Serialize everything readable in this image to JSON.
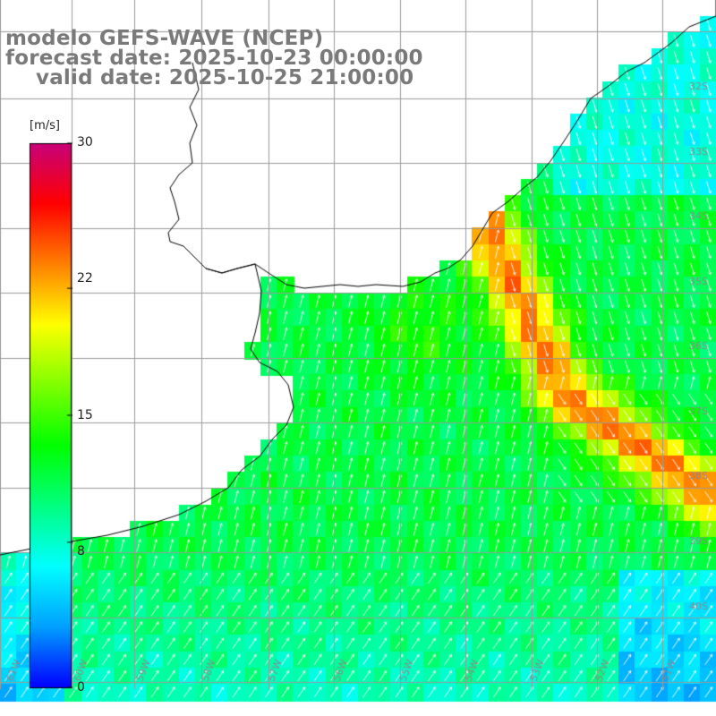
{
  "title": {
    "line1": "modelo GEFS-WAVE (NCEP)",
    "line2": "forecast date: 2025-10-23 00:00:00",
    "line3": "valid date: 2025-10-25 21:00:00"
  },
  "colorbar": {
    "unit": "[m/s]",
    "min": 0,
    "max": 30,
    "ticks": [
      "30",
      "22",
      "15",
      "8",
      "0"
    ],
    "tick_values": [
      30,
      22,
      15,
      8,
      0
    ],
    "colors": [
      "#0000ff",
      "#00a0ff",
      "#00ffff",
      "#00ff80",
      "#00ff00",
      "#80ff00",
      "#ffff00",
      "#ff8000",
      "#ff0000",
      "#c8007a"
    ]
  },
  "map": {
    "variable": "wind speed",
    "unit": "m/s",
    "longitude_labels": [
      "61W",
      "60W",
      "59W",
      "58W",
      "57W",
      "56W",
      "55W",
      "54W",
      "53W",
      "52W",
      "51W"
    ],
    "latitude_labels": [
      "32S",
      "33S",
      "34S",
      "35S",
      "36S",
      "37S",
      "38S",
      "39S",
      "40S"
    ],
    "land_color": "#ffffff",
    "grid_color": "#999999",
    "coast_color": "#000000"
  }
}
